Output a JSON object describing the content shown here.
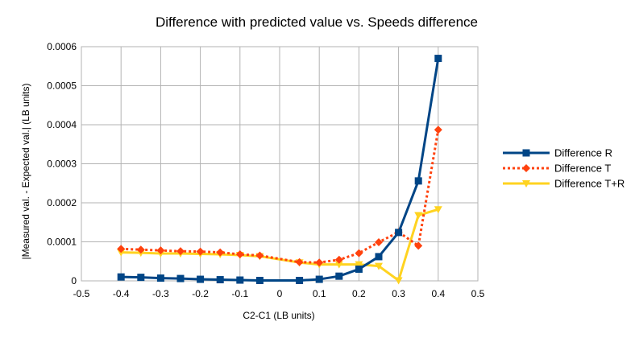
{
  "chart_data": {
    "type": "line",
    "title": "Difference with predicted value vs. Speeds difference",
    "xlabel": "C2-C1 (LB units)",
    "ylabel": "|Measured val. - Expected val.| (LB units)",
    "xlim": [
      -0.5,
      0.5
    ],
    "ylim": [
      0,
      0.0006
    ],
    "xticks": [
      "-0.5",
      "-0.4",
      "-0.3",
      "-0.2",
      "-0.1",
      "0",
      "0.1",
      "0.2",
      "0.3",
      "0.4",
      "0.5"
    ],
    "yticks": [
      "0",
      "0.0001",
      "0.0002",
      "0.0003",
      "0.0004",
      "0.0005",
      "0.0006"
    ],
    "grid": true,
    "legend_position": "right",
    "series": [
      {
        "name": "Difference R",
        "color": "#004586",
        "line_style": "solid",
        "marker": "square",
        "x": [
          -0.4,
          -0.35,
          -0.3,
          -0.25,
          -0.2,
          -0.15,
          -0.1,
          -0.05,
          0.05,
          0.1,
          0.15,
          0.2,
          0.25,
          0.3,
          0.35,
          0.4
        ],
        "y": [
          1e-05,
          9e-06,
          7e-06,
          6e-06,
          4e-06,
          3e-06,
          2e-06,
          1e-06,
          1e-06,
          4e-06,
          1.2e-05,
          3e-05,
          6.2e-05,
          0.000124,
          0.000256,
          0.00057
        ]
      },
      {
        "name": "Difference T",
        "color": "#ff420e",
        "line_style": "dotted",
        "marker": "diamond",
        "x": [
          -0.4,
          -0.35,
          -0.3,
          -0.25,
          -0.2,
          -0.15,
          -0.1,
          -0.05,
          0.05,
          0.1,
          0.15,
          0.2,
          0.25,
          0.3,
          0.35,
          0.4
        ],
        "y": [
          8.2e-05,
          8e-05,
          7.8e-05,
          7.6e-05,
          7.5e-05,
          7.3e-05,
          6.8e-05,
          6.5e-05,
          4.8e-05,
          4.7e-05,
          5.4e-05,
          7.1e-05,
          9.9e-05,
          0.000125,
          9e-05,
          0.000387
        ]
      },
      {
        "name": "Difference T+R",
        "color": "#ffd320",
        "line_style": "solid",
        "marker": "triangle-down",
        "x": [
          -0.4,
          -0.35,
          -0.3,
          -0.25,
          -0.2,
          -0.15,
          -0.1,
          -0.05,
          0.05,
          0.1,
          0.15,
          0.2,
          0.25,
          0.3,
          0.35,
          0.4
        ],
        "y": [
          7.3e-05,
          7.2e-05,
          7e-05,
          7e-05,
          6.9e-05,
          6.8e-05,
          6.6e-05,
          6.3e-05,
          4.7e-05,
          4.2e-05,
          4.2e-05,
          4.2e-05,
          3.8e-05,
          1e-06,
          0.000168,
          0.000183
        ]
      }
    ]
  }
}
